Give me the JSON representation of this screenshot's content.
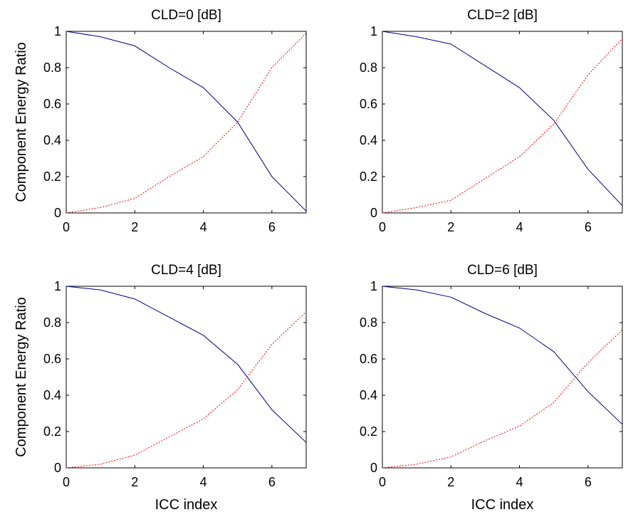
{
  "chart_data": [
    {
      "type": "line",
      "title": "CLD=0 [dB]",
      "xlabel": "",
      "ylabel": "Component Energy Ratio",
      "xlim": [
        0,
        7
      ],
      "ylim": [
        0,
        1
      ],
      "xticks": [
        "0",
        "2",
        "4",
        "6"
      ],
      "yticks": [
        "0",
        "0.2",
        "0.4",
        "0.6",
        "0.8",
        "1"
      ],
      "x": [
        0,
        1,
        2,
        3,
        4,
        5,
        6,
        7
      ],
      "series": [
        {
          "values": [
            1.0,
            0.97,
            0.92,
            0.8,
            0.69,
            0.5,
            0.2,
            0.01
          ],
          "color": "#00008b",
          "style": "solid"
        },
        {
          "values": [
            0.0,
            0.03,
            0.08,
            0.2,
            0.31,
            0.5,
            0.8,
            0.99
          ],
          "color": "#ff0000",
          "style": "dotted"
        }
      ]
    },
    {
      "type": "line",
      "title": "CLD=2 [dB]",
      "xlabel": "",
      "ylabel": "",
      "xlim": [
        0,
        7
      ],
      "ylim": [
        0,
        1
      ],
      "xticks": [
        "0",
        "2",
        "4",
        "6"
      ],
      "yticks": [
        "0",
        "0.2",
        "0.4",
        "0.6",
        "0.8",
        "1"
      ],
      "x": [
        0,
        1,
        2,
        3,
        4,
        5,
        6,
        7
      ],
      "series": [
        {
          "values": [
            1.0,
            0.97,
            0.93,
            0.81,
            0.69,
            0.51,
            0.24,
            0.04
          ],
          "color": "#00008b",
          "style": "solid"
        },
        {
          "values": [
            0.0,
            0.03,
            0.07,
            0.19,
            0.31,
            0.49,
            0.76,
            0.96
          ],
          "color": "#ff0000",
          "style": "dotted"
        }
      ]
    },
    {
      "type": "line",
      "title": "CLD=4 [dB]",
      "xlabel": "ICC index",
      "ylabel": "Component Energy Ratio",
      "xlim": [
        0,
        7
      ],
      "ylim": [
        0,
        1
      ],
      "xticks": [
        "0",
        "2",
        "4",
        "6"
      ],
      "yticks": [
        "0",
        "0.2",
        "0.4",
        "0.6",
        "0.8",
        "1"
      ],
      "x": [
        0,
        1,
        2,
        3,
        4,
        5,
        6,
        7
      ],
      "series": [
        {
          "values": [
            1.0,
            0.98,
            0.93,
            0.83,
            0.73,
            0.57,
            0.32,
            0.14
          ],
          "color": "#00008b",
          "style": "solid"
        },
        {
          "values": [
            0.0,
            0.02,
            0.07,
            0.17,
            0.27,
            0.43,
            0.68,
            0.86
          ],
          "color": "#ff0000",
          "style": "dotted"
        }
      ]
    },
    {
      "type": "line",
      "title": "CLD=6 [dB]",
      "xlabel": "ICC index",
      "ylabel": "",
      "xlim": [
        0,
        7
      ],
      "ylim": [
        0,
        1
      ],
      "xticks": [
        "0",
        "2",
        "4",
        "6"
      ],
      "yticks": [
        "0",
        "0.2",
        "0.4",
        "0.6",
        "0.8",
        "1"
      ],
      "x": [
        0,
        1,
        2,
        3,
        4,
        5,
        6,
        7
      ],
      "series": [
        {
          "values": [
            1.0,
            0.98,
            0.94,
            0.85,
            0.77,
            0.64,
            0.42,
            0.24
          ],
          "color": "#00008b",
          "style": "solid"
        },
        {
          "values": [
            0.0,
            0.02,
            0.06,
            0.15,
            0.23,
            0.36,
            0.58,
            0.76
          ],
          "color": "#ff0000",
          "style": "dotted"
        }
      ]
    }
  ]
}
